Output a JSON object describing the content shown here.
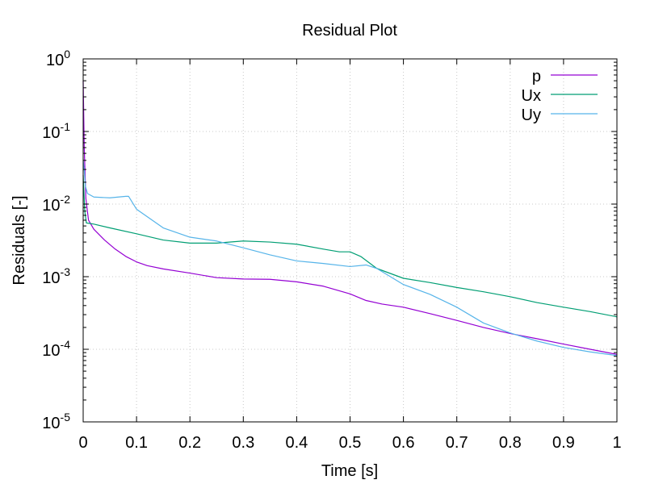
{
  "chart_data": {
    "type": "line",
    "title": "Residual Plot",
    "xlabel": "Time [s]",
    "ylabel": "Residuals [-]",
    "xlim": [
      0,
      1
    ],
    "ylim": [
      1e-05,
      1
    ],
    "yscale": "log",
    "grid": true,
    "legend_position": "top-right",
    "x_ticks": [
      {
        "value": 0,
        "label": "0"
      },
      {
        "value": 0.1,
        "label": "0.1"
      },
      {
        "value": 0.2,
        "label": "0.2"
      },
      {
        "value": 0.3,
        "label": "0.3"
      },
      {
        "value": 0.4,
        "label": "0.4"
      },
      {
        "value": 0.5,
        "label": "0.5"
      },
      {
        "value": 0.6,
        "label": "0.6"
      },
      {
        "value": 0.7,
        "label": "0.7"
      },
      {
        "value": 0.8,
        "label": "0.8"
      },
      {
        "value": 0.9,
        "label": "0.9"
      },
      {
        "value": 1,
        "label": "1"
      }
    ],
    "y_ticks": [
      {
        "value": 1,
        "base": "10",
        "exp": "0"
      },
      {
        "value": 0.1,
        "base": "10",
        "exp": "-1"
      },
      {
        "value": 0.01,
        "base": "10",
        "exp": "-2"
      },
      {
        "value": 0.001,
        "base": "10",
        "exp": "-3"
      },
      {
        "value": 0.0001,
        "base": "10",
        "exp": "-4"
      },
      {
        "value": 1e-05,
        "base": "10",
        "exp": "-5"
      }
    ],
    "series": [
      {
        "name": "p",
        "color": "#9400d3",
        "points": [
          [
            0,
            0.5
          ],
          [
            0.002,
            0.06
          ],
          [
            0.005,
            0.012
          ],
          [
            0.01,
            0.006
          ],
          [
            0.02,
            0.0045
          ],
          [
            0.04,
            0.0032
          ],
          [
            0.06,
            0.0024
          ],
          [
            0.08,
            0.0019
          ],
          [
            0.1,
            0.0016
          ],
          [
            0.12,
            0.00142
          ],
          [
            0.15,
            0.00128
          ],
          [
            0.2,
            0.00112
          ],
          [
            0.25,
            0.00097
          ],
          [
            0.3,
            0.00093
          ],
          [
            0.35,
            0.00092
          ],
          [
            0.4,
            0.00085
          ],
          [
            0.45,
            0.00074
          ],
          [
            0.5,
            0.00058
          ],
          [
            0.53,
            0.00047
          ],
          [
            0.56,
            0.00042
          ],
          [
            0.6,
            0.00038
          ],
          [
            0.65,
            0.00031
          ],
          [
            0.7,
            0.00025
          ],
          [
            0.75,
            0.0002
          ],
          [
            0.8,
            0.000165
          ],
          [
            0.85,
            0.00014
          ],
          [
            0.9,
            0.000118
          ],
          [
            0.95,
            0.0001
          ],
          [
            1,
            8.5e-05
          ]
        ]
      },
      {
        "name": "Ux",
        "color": "#009e73",
        "points": [
          [
            0,
            0.025
          ],
          [
            0.003,
            0.008
          ],
          [
            0.006,
            0.0055
          ],
          [
            0.02,
            0.0053
          ],
          [
            0.05,
            0.0047
          ],
          [
            0.1,
            0.0039
          ],
          [
            0.15,
            0.0032
          ],
          [
            0.2,
            0.0029
          ],
          [
            0.25,
            0.0029
          ],
          [
            0.3,
            0.0031
          ],
          [
            0.35,
            0.003
          ],
          [
            0.4,
            0.0028
          ],
          [
            0.45,
            0.0024
          ],
          [
            0.48,
            0.0022
          ],
          [
            0.5,
            0.0022
          ],
          [
            0.52,
            0.0019
          ],
          [
            0.55,
            0.0013
          ],
          [
            0.6,
            0.00095
          ],
          [
            0.65,
            0.00083
          ],
          [
            0.7,
            0.00071
          ],
          [
            0.75,
            0.00062
          ],
          [
            0.8,
            0.00053
          ],
          [
            0.85,
            0.00044
          ],
          [
            0.9,
            0.00038
          ],
          [
            0.95,
            0.00033
          ],
          [
            1,
            0.00028
          ]
        ]
      },
      {
        "name": "Uy",
        "color": "#56b4e9",
        "points": [
          [
            0,
            0.04
          ],
          [
            0.002,
            0.03
          ],
          [
            0.004,
            0.018
          ],
          [
            0.008,
            0.014
          ],
          [
            0.02,
            0.0125
          ],
          [
            0.05,
            0.0122
          ],
          [
            0.08,
            0.0128
          ],
          [
            0.085,
            0.0128
          ],
          [
            0.1,
            0.0085
          ],
          [
            0.15,
            0.0047
          ],
          [
            0.2,
            0.0035
          ],
          [
            0.25,
            0.0031
          ],
          [
            0.3,
            0.0025
          ],
          [
            0.35,
            0.002
          ],
          [
            0.4,
            0.00165
          ],
          [
            0.45,
            0.00152
          ],
          [
            0.5,
            0.00138
          ],
          [
            0.53,
            0.00145
          ],
          [
            0.55,
            0.0013
          ],
          [
            0.6,
            0.00078
          ],
          [
            0.65,
            0.00057
          ],
          [
            0.7,
            0.00038
          ],
          [
            0.75,
            0.00023
          ],
          [
            0.8,
            0.000168
          ],
          [
            0.85,
            0.00013
          ],
          [
            0.9,
            0.000106
          ],
          [
            0.95,
            9.2e-05
          ],
          [
            1,
            8.2e-05
          ]
        ]
      }
    ]
  }
}
